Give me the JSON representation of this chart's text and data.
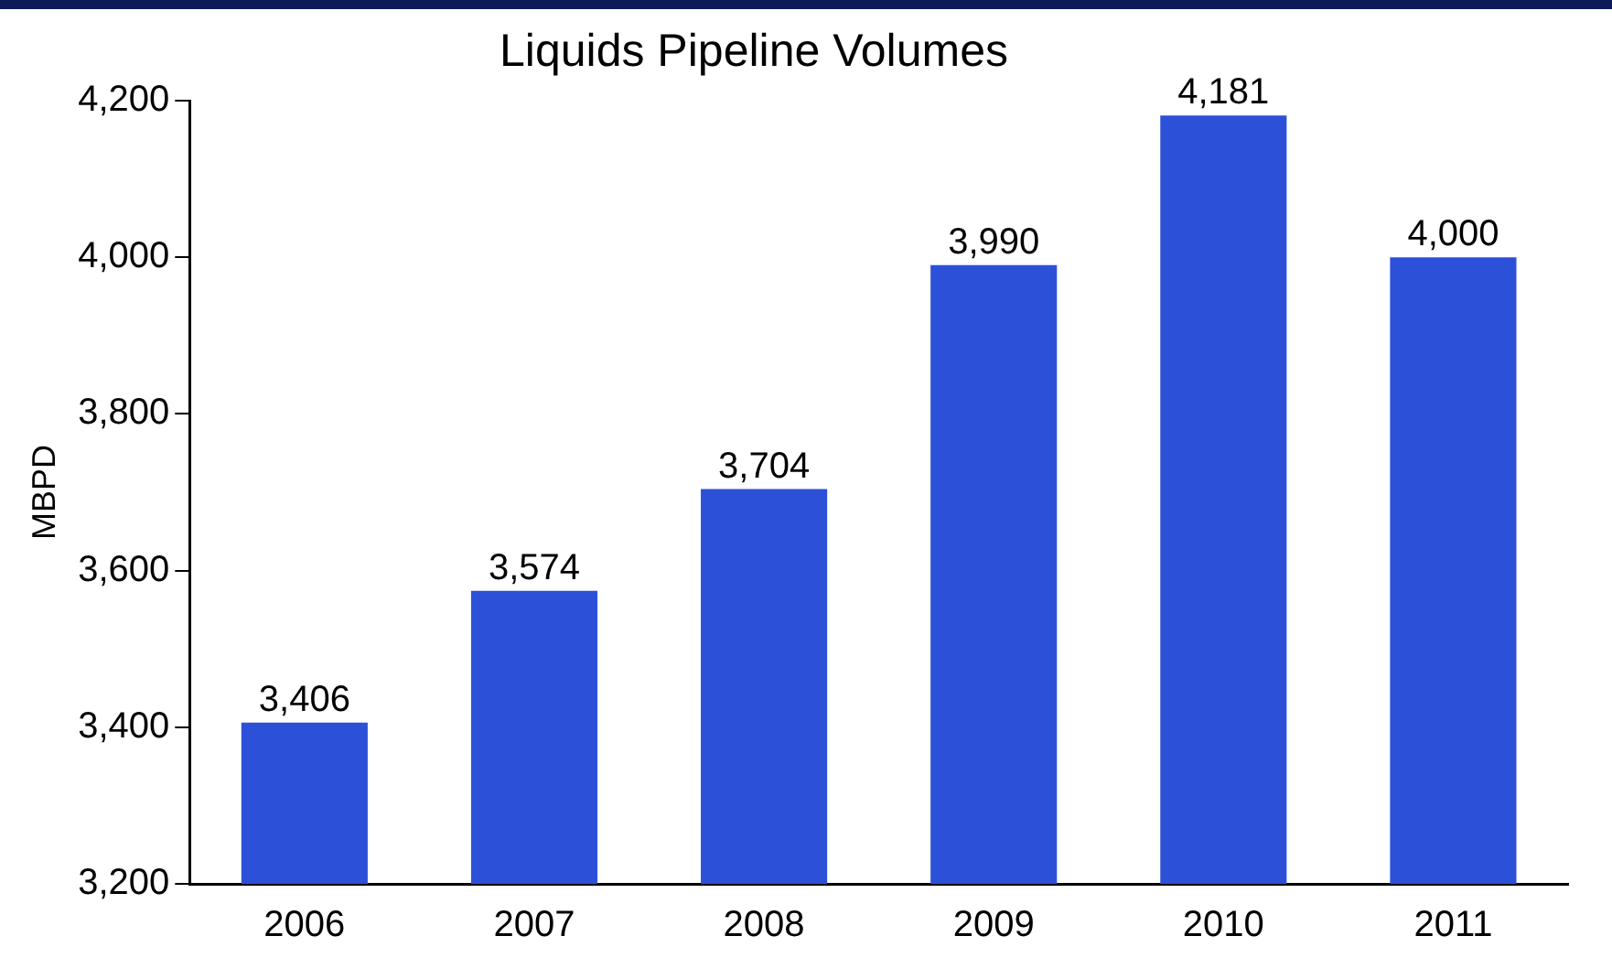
{
  "chart_data": {
    "type": "bar",
    "title": "Liquids Pipeline Volumes",
    "ylabel": "MBPD",
    "categories": [
      "2006",
      "2007",
      "2008",
      "2009",
      "2010",
      "2011"
    ],
    "values": [
      3406,
      3574,
      3704,
      3990,
      4181,
      4000
    ],
    "color": "#2c50d8",
    "ylim": [
      3200,
      4200
    ],
    "yticks": [
      {
        "value": 3200,
        "label": "3,200"
      },
      {
        "value": 3400,
        "label": "3,400"
      },
      {
        "value": 3600,
        "label": "3,600"
      },
      {
        "value": 3800,
        "label": "3,800"
      },
      {
        "value": 4000,
        "label": "4,000"
      },
      {
        "value": 4200,
        "label": "4,200"
      }
    ],
    "value_labels": [
      "3,406",
      "3,574",
      "3,704",
      "3,990",
      "4,181",
      "4,000"
    ],
    "grid": false,
    "legend": false
  }
}
